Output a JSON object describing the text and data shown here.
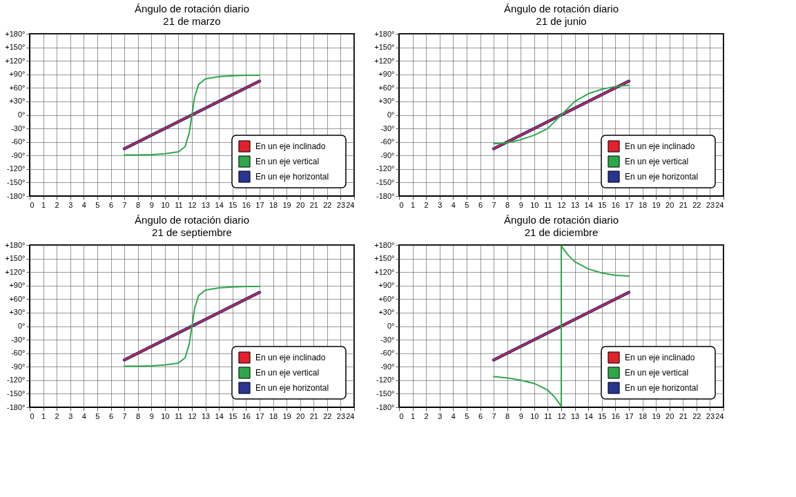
{
  "chart_data": [
    {
      "type": "line",
      "title": "Ángulo de rotación diario",
      "subtitle": "21 de marzo",
      "xlim": [
        0,
        24
      ],
      "xticks": [
        0,
        1,
        2,
        3,
        4,
        5,
        6,
        7,
        8,
        9,
        10,
        11,
        12,
        13,
        14,
        15,
        16,
        17,
        18,
        19,
        20,
        21,
        22,
        23,
        24
      ],
      "ylim": [
        -180,
        180
      ],
      "yticks": [
        {
          "value": 180,
          "label": "+180°"
        },
        {
          "value": 150,
          "label": "+150°"
        },
        {
          "value": 120,
          "label": "+120°"
        },
        {
          "value": 90,
          "label": "+90°"
        },
        {
          "value": 60,
          "label": "+60°"
        },
        {
          "value": 30,
          "label": "+30°"
        },
        {
          "value": 0,
          "label": "0°"
        },
        {
          "value": -30,
          "label": "-30°"
        },
        {
          "value": -60,
          "label": "-60°"
        },
        {
          "value": -90,
          "label": "-90°"
        },
        {
          "value": -120,
          "label": "-120°"
        },
        {
          "value": -150,
          "label": "-150°"
        },
        {
          "value": -180,
          "label": "-180°"
        }
      ],
      "grid": true,
      "legend": "bottom right",
      "series": [
        {
          "name": "En un eje inclinado",
          "color": "#e3202b",
          "x": [
            7,
            17
          ],
          "values": [
            -75,
            75
          ]
        },
        {
          "name": "En un eje vertical",
          "color": "#2ca84a",
          "x": [
            7,
            8,
            9,
            10,
            11,
            11.5,
            11.8,
            12,
            12.2,
            12.5,
            13,
            14,
            15,
            16,
            17
          ],
          "values": [
            -89,
            -89,
            -88,
            -86,
            -82,
            -70,
            -40,
            0,
            40,
            68,
            80,
            85,
            87,
            88,
            88
          ]
        },
        {
          "name": "En un eje horizontal",
          "color": "#283593",
          "x": [
            7,
            17
          ],
          "values": [
            -75,
            75
          ]
        }
      ]
    },
    {
      "type": "line",
      "title": "Ángulo de rotación diario",
      "subtitle": "21 de junio",
      "xlim": [
        0,
        24
      ],
      "xticks": [
        0,
        1,
        2,
        3,
        4,
        5,
        6,
        7,
        8,
        9,
        10,
        11,
        12,
        13,
        14,
        15,
        16,
        17,
        18,
        19,
        20,
        21,
        22,
        23,
        24
      ],
      "ylim": [
        -180,
        180
      ],
      "yticks": [
        {
          "value": 180,
          "label": "+180°"
        },
        {
          "value": 150,
          "label": "+150°"
        },
        {
          "value": 120,
          "label": "+120°"
        },
        {
          "value": 90,
          "label": "+90°"
        },
        {
          "value": 60,
          "label": "+60°"
        },
        {
          "value": 30,
          "label": "+30°"
        },
        {
          "value": 0,
          "label": "0°"
        },
        {
          "value": -30,
          "label": "-30°"
        },
        {
          "value": -60,
          "label": "-60°"
        },
        {
          "value": -90,
          "label": "-90°"
        },
        {
          "value": -120,
          "label": "-120°"
        },
        {
          "value": -150,
          "label": "-150°"
        },
        {
          "value": -180,
          "label": "-180°"
        }
      ],
      "grid": true,
      "legend": "bottom right",
      "series": [
        {
          "name": "En un eje inclinado",
          "color": "#e3202b",
          "x": [
            7,
            17
          ],
          "values": [
            -75,
            75
          ]
        },
        {
          "name": "En un eje vertical",
          "color": "#2ca84a",
          "x": [
            7,
            8,
            9,
            10,
            11,
            12,
            13,
            14,
            15,
            16,
            17
          ],
          "values": [
            -64,
            -62,
            -55,
            -45,
            -30,
            0,
            30,
            47,
            57,
            63,
            66
          ]
        },
        {
          "name": "En un eje horizontal",
          "color": "#283593",
          "x": [
            7,
            17
          ],
          "values": [
            -75,
            75
          ]
        }
      ]
    },
    {
      "type": "line",
      "title": "Ángulo de rotación diario",
      "subtitle": "21 de septiembre",
      "xlim": [
        0,
        24
      ],
      "xticks": [
        0,
        1,
        2,
        3,
        4,
        5,
        6,
        7,
        8,
        9,
        10,
        11,
        12,
        13,
        14,
        15,
        16,
        17,
        18,
        19,
        20,
        21,
        22,
        23,
        24
      ],
      "ylim": [
        -180,
        180
      ],
      "yticks": [
        {
          "value": 180,
          "label": "+180°"
        },
        {
          "value": 150,
          "label": "+150°"
        },
        {
          "value": 120,
          "label": "+120°"
        },
        {
          "value": 90,
          "label": "+90°"
        },
        {
          "value": 60,
          "label": "+60°"
        },
        {
          "value": 30,
          "label": "+30°"
        },
        {
          "value": 0,
          "label": "0°"
        },
        {
          "value": -30,
          "label": "-30°"
        },
        {
          "value": -60,
          "label": "-60°"
        },
        {
          "value": -90,
          "label": "-90°"
        },
        {
          "value": -120,
          "label": "-120°"
        },
        {
          "value": -150,
          "label": "-150°"
        },
        {
          "value": -180,
          "label": "-180°"
        }
      ],
      "grid": true,
      "legend": "bottom right",
      "series": [
        {
          "name": "En un eje inclinado",
          "color": "#e3202b",
          "x": [
            7,
            17
          ],
          "values": [
            -75,
            75
          ]
        },
        {
          "name": "En un eje vertical",
          "color": "#2ca84a",
          "x": [
            7,
            8,
            9,
            10,
            11,
            11.5,
            11.8,
            12,
            12.2,
            12.5,
            13,
            14,
            15,
            16,
            17
          ],
          "values": [
            -89,
            -89,
            -88,
            -86,
            -82,
            -70,
            -40,
            0,
            40,
            68,
            80,
            85,
            87,
            88,
            88
          ]
        },
        {
          "name": "En un eje horizontal",
          "color": "#283593",
          "x": [
            7,
            17
          ],
          "values": [
            -75,
            75
          ]
        }
      ]
    },
    {
      "type": "line",
      "title": "Ángulo de rotación diario",
      "subtitle": "21 de diciembre",
      "xlim": [
        0,
        24
      ],
      "xticks": [
        0,
        1,
        2,
        3,
        4,
        5,
        6,
        7,
        8,
        9,
        10,
        11,
        12,
        13,
        14,
        15,
        16,
        17,
        18,
        19,
        20,
        21,
        22,
        23,
        24
      ],
      "ylim": [
        -180,
        180
      ],
      "yticks": [
        {
          "value": 180,
          "label": "+180°"
        },
        {
          "value": 150,
          "label": "+150°"
        },
        {
          "value": 120,
          "label": "+120°"
        },
        {
          "value": 90,
          "label": "+90°"
        },
        {
          "value": 60,
          "label": "+60°"
        },
        {
          "value": 30,
          "label": "+30°"
        },
        {
          "value": 0,
          "label": "0°"
        },
        {
          "value": -30,
          "label": "-30°"
        },
        {
          "value": -60,
          "label": "-60°"
        },
        {
          "value": -90,
          "label": "-90°"
        },
        {
          "value": -120,
          "label": "-120°"
        },
        {
          "value": -150,
          "label": "-150°"
        },
        {
          "value": -180,
          "label": "-180°"
        }
      ],
      "grid": true,
      "legend": "bottom right",
      "series": [
        {
          "name": "En un eje inclinado",
          "color": "#e3202b",
          "x": [
            7,
            17
          ],
          "values": [
            -75,
            75
          ]
        },
        {
          "name": "En un eje vertical",
          "color": "#2ca84a",
          "x": [
            7,
            8,
            9,
            10,
            11,
            11.5,
            12,
            12,
            12.5,
            13,
            14,
            15,
            16,
            17
          ],
          "values": [
            -112,
            -115,
            -120,
            -127,
            -142,
            -157,
            -178,
            178,
            158,
            143,
            127,
            118,
            113,
            111
          ]
        },
        {
          "name": "En un eje horizontal",
          "color": "#283593",
          "x": [
            7,
            17
          ],
          "values": [
            -75,
            75
          ]
        }
      ]
    }
  ]
}
